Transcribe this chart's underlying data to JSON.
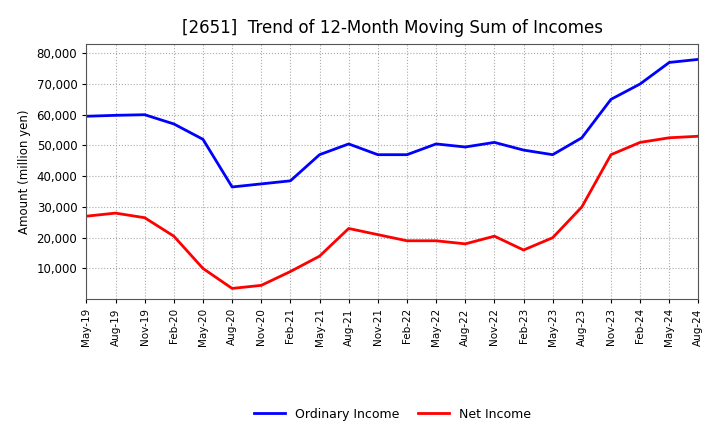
{
  "title": "[2651]  Trend of 12-Month Moving Sum of Incomes",
  "ylabel": "Amount (million yen)",
  "ylim": [
    0,
    83000
  ],
  "yticks": [
    10000,
    20000,
    30000,
    40000,
    50000,
    60000,
    70000,
    80000
  ],
  "background_color": "#ffffff",
  "grid_color": "#aaaaaa",
  "ordinary_income_color": "#0000ff",
  "net_income_color": "#ff0000",
  "x_labels": [
    "May-19",
    "Aug-19",
    "Nov-19",
    "Feb-20",
    "May-20",
    "Aug-20",
    "Nov-20",
    "Feb-21",
    "May-21",
    "Aug-21",
    "Nov-21",
    "Feb-22",
    "May-22",
    "Aug-22",
    "Nov-22",
    "Feb-23",
    "May-23",
    "Aug-23",
    "Nov-23",
    "Feb-24",
    "May-24",
    "Aug-24"
  ],
  "ordinary_income": [
    59500,
    59800,
    60000,
    57000,
    52000,
    36500,
    37500,
    38500,
    47000,
    50500,
    47000,
    47000,
    50500,
    49500,
    51000,
    48500,
    47000,
    52500,
    65000,
    70000,
    77000,
    78000
  ],
  "net_income": [
    27000,
    28000,
    26500,
    20500,
    10000,
    3500,
    4500,
    9000,
    14000,
    23000,
    21000,
    19000,
    19000,
    18000,
    20500,
    16000,
    20000,
    30000,
    47000,
    51000,
    52500,
    53000
  ]
}
